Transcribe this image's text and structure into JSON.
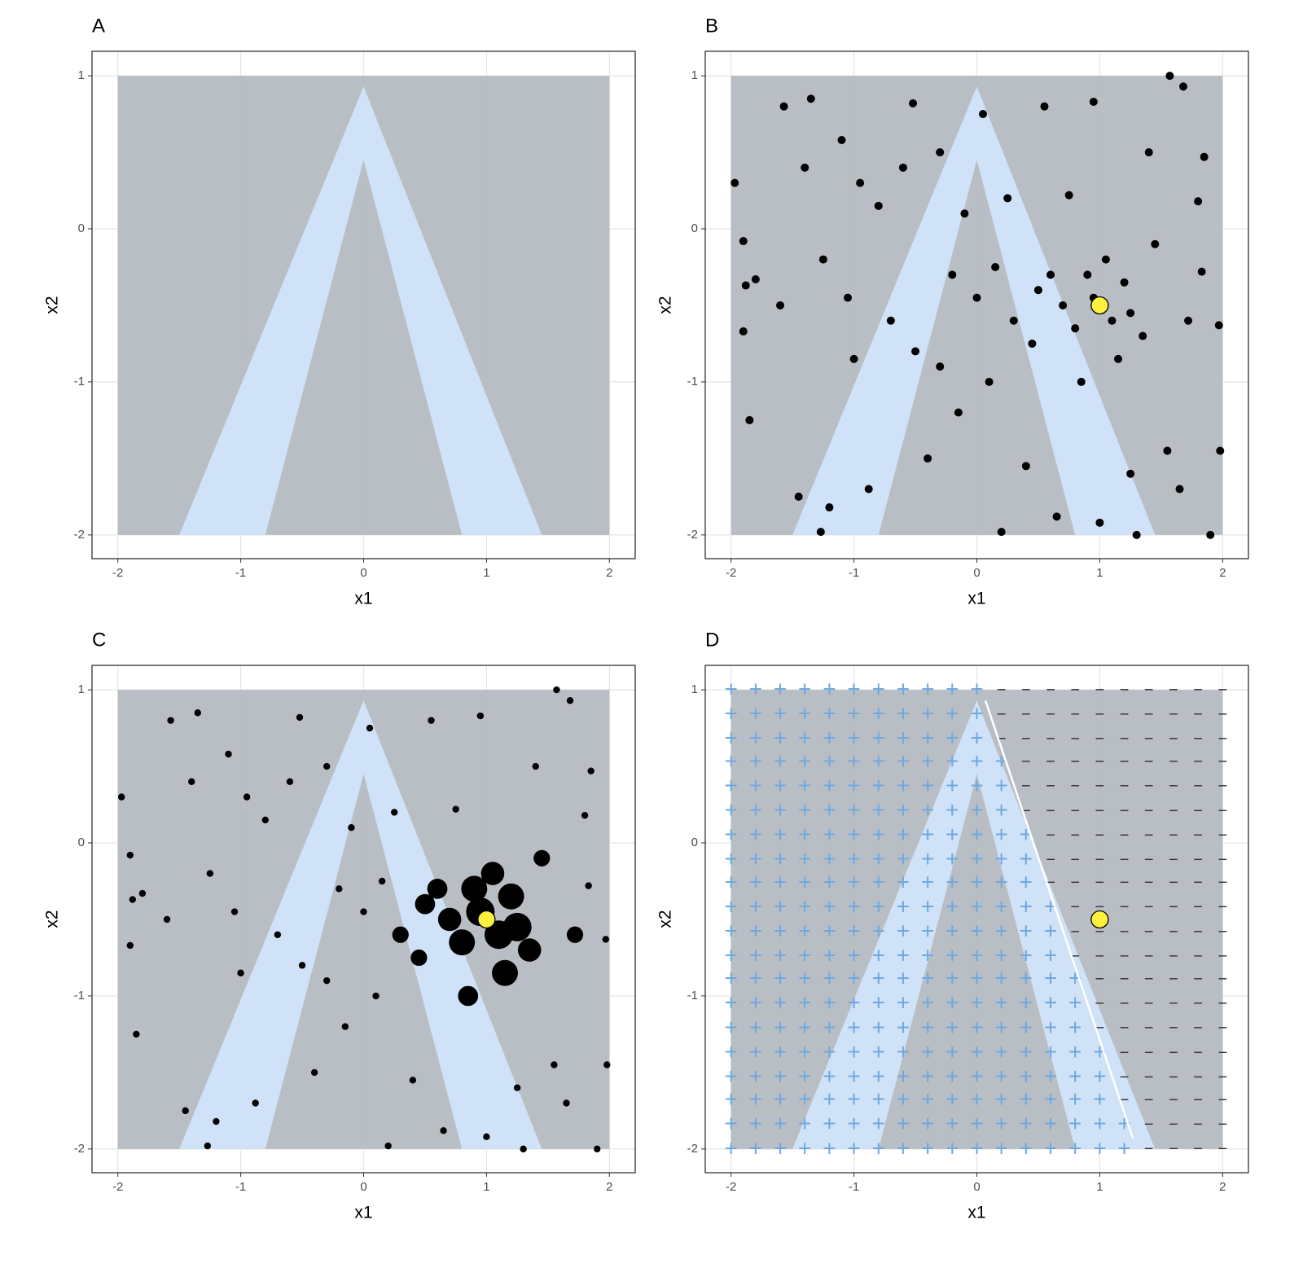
{
  "chart_data": [
    {
      "type": "region",
      "title": "A",
      "xlabel": "x1",
      "ylabel": "x2",
      "xlim": [
        -2.21,
        2.21
      ],
      "ylim": [
        -2.155,
        1.16
      ],
      "xticks": [
        -2,
        -1,
        0,
        1,
        2
      ],
      "yticks": [
        -2,
        -1,
        0,
        1
      ],
      "grid": true,
      "background": {
        "x": [
          -2,
          2
        ],
        "y": [
          -2,
          1
        ],
        "color": "#b5bac1"
      },
      "band": {
        "x": [
          0,
          1.45,
          0.8,
          0,
          -0.8,
          -1.5
        ],
        "y": [
          0.93,
          -2,
          -2,
          0.45,
          -2,
          -2
        ],
        "color": "#cfe2f7"
      }
    },
    {
      "type": "scatter",
      "title": "B",
      "xlabel": "x1",
      "ylabel": "x2",
      "xlim": [
        -2.21,
        2.21
      ],
      "ylim": [
        -2.155,
        1.16
      ],
      "xticks": [
        -2,
        -1,
        0,
        1,
        2
      ],
      "yticks": [
        -2,
        -1,
        0,
        1
      ],
      "grid": true,
      "background": {
        "x": [
          -2,
          2
        ],
        "y": [
          -2,
          1
        ],
        "color": "#b5bac1"
      },
      "band": {
        "x": [
          0,
          1.45,
          0.8,
          0,
          -0.8,
          -1.5
        ],
        "y": [
          0.93,
          -2,
          -2,
          0.45,
          -2,
          -2
        ],
        "color": "#cfe2f7"
      },
      "points": {
        "color": "#000000",
        "x": [
          -1.97,
          -1.9,
          -1.88,
          -1.8,
          -1.9,
          -1.85,
          -1.6,
          -1.57,
          -1.45,
          -1.35,
          -1.4,
          -1.25,
          -1.2,
          -1.27,
          -1.1,
          -1.05,
          -1.0,
          -0.95,
          -0.88,
          -0.8,
          -0.7,
          -0.6,
          -0.52,
          -0.5,
          -0.4,
          -0.3,
          -0.2,
          -0.15,
          -0.1,
          0.0,
          0.05,
          0.1,
          0.2,
          0.25,
          0.3,
          0.4,
          0.45,
          0.55,
          0.6,
          0.65,
          0.7,
          0.75,
          0.8,
          0.85,
          0.9,
          0.95,
          1.0,
          1.05,
          1.1,
          1.15,
          1.2,
          1.25,
          1.3,
          1.35,
          1.4,
          1.45,
          1.55,
          1.57,
          1.65,
          1.68,
          1.72,
          1.8,
          1.83,
          1.85,
          1.9,
          1.97,
          1.98,
          0.5,
          0.95,
          1.25,
          -0.3,
          0.15
        ],
        "y": [
          0.3,
          -0.08,
          -0.37,
          -0.33,
          -0.67,
          -1.25,
          -0.5,
          0.8,
          -1.75,
          0.85,
          0.4,
          -0.2,
          -1.82,
          -1.98,
          0.58,
          -0.45,
          -0.85,
          0.3,
          -1.7,
          0.15,
          -0.6,
          0.4,
          0.82,
          -0.8,
          -1.5,
          0.5,
          -0.3,
          -1.2,
          0.1,
          -0.45,
          0.75,
          -1.0,
          -1.98,
          0.2,
          -0.6,
          -1.55,
          -0.75,
          0.8,
          -0.3,
          -1.88,
          -0.5,
          0.22,
          -0.65,
          -1.0,
          -0.3,
          0.83,
          -1.92,
          -0.2,
          -0.6,
          -0.85,
          -0.35,
          -1.6,
          -2.0,
          -0.7,
          0.5,
          -0.1,
          -1.45,
          1.0,
          -1.7,
          0.93,
          -0.6,
          0.18,
          -0.28,
          0.47,
          -2.0,
          -0.63,
          -1.45,
          -0.4,
          -0.45,
          -0.55,
          -0.9,
          -0.25
        ]
      },
      "highlight": {
        "x": 1,
        "y": -0.5,
        "color": "#fff13d"
      }
    },
    {
      "type": "bubble",
      "title": "C",
      "xlabel": "x1",
      "ylabel": "x2",
      "xlim": [
        -2.21,
        2.21
      ],
      "ylim": [
        -2.155,
        1.16
      ],
      "xticks": [
        -2,
        -1,
        0,
        1,
        2
      ],
      "yticks": [
        -2,
        -1,
        0,
        1
      ],
      "grid": true,
      "background": {
        "x": [
          -2,
          2
        ],
        "y": [
          -2,
          1
        ],
        "color": "#b5bac1"
      },
      "band": {
        "x": [
          0,
          1.45,
          0.8,
          0,
          -0.8,
          -1.5
        ],
        "y": [
          0.93,
          -2,
          -2,
          0.45,
          -2,
          -2
        ],
        "color": "#cfe2f7"
      },
      "points": {
        "color": "#000000",
        "x": [
          -1.97,
          -1.9,
          -1.88,
          -1.8,
          -1.9,
          -1.85,
          -1.6,
          -1.57,
          -1.45,
          -1.35,
          -1.4,
          -1.25,
          -1.2,
          -1.27,
          -1.1,
          -1.05,
          -1.0,
          -0.95,
          -0.88,
          -0.8,
          -0.7,
          -0.6,
          -0.52,
          -0.5,
          -0.4,
          -0.3,
          -0.2,
          -0.15,
          -0.1,
          0.0,
          0.05,
          0.1,
          0.2,
          0.25,
          0.3,
          0.4,
          0.45,
          0.55,
          0.6,
          0.65,
          0.7,
          0.75,
          0.8,
          0.85,
          0.9,
          0.95,
          1.0,
          1.05,
          1.1,
          1.15,
          1.2,
          1.25,
          1.3,
          1.35,
          1.4,
          1.45,
          1.55,
          1.57,
          1.65,
          1.68,
          1.72,
          1.8,
          1.83,
          1.85,
          1.9,
          1.97,
          1.98,
          0.5,
          0.95,
          1.25,
          -0.3,
          0.15
        ],
        "y": [
          0.3,
          -0.08,
          -0.37,
          -0.33,
          -0.67,
          -1.25,
          -0.5,
          0.8,
          -1.75,
          0.85,
          0.4,
          -0.2,
          -1.82,
          -1.98,
          0.58,
          -0.45,
          -0.85,
          0.3,
          -1.7,
          0.15,
          -0.6,
          0.4,
          0.82,
          -0.8,
          -1.5,
          0.5,
          -0.3,
          -1.2,
          0.1,
          -0.45,
          0.75,
          -1.0,
          -1.98,
          0.2,
          -0.6,
          -1.55,
          -0.75,
          0.8,
          -0.3,
          -1.88,
          -0.5,
          0.22,
          -0.65,
          -1.0,
          -0.3,
          0.83,
          -1.92,
          -0.2,
          -0.6,
          -0.85,
          -0.35,
          -1.6,
          -2.0,
          -0.7,
          0.5,
          -0.1,
          -1.45,
          1.0,
          -1.7,
          0.93,
          -0.6,
          0.18,
          -0.28,
          0.47,
          -2.0,
          -0.63,
          -1.45,
          -0.4,
          -0.45,
          -0.55,
          -0.9,
          -0.25
        ],
        "sizes": [
          1,
          1,
          1,
          1,
          1,
          1,
          1,
          1,
          1,
          1,
          1,
          1,
          1,
          1,
          1,
          1,
          1,
          1,
          1,
          1,
          1,
          1,
          1,
          1,
          1,
          1,
          1,
          1,
          1,
          1,
          1,
          1,
          1,
          1,
          2,
          1,
          2,
          1,
          3,
          1,
          4,
          1,
          5,
          3,
          5,
          1,
          1,
          4,
          6,
          5,
          5,
          1,
          1,
          4,
          1,
          2,
          1,
          1,
          1,
          1,
          2,
          1,
          1,
          1,
          1,
          1,
          1,
          3,
          6,
          6,
          1,
          1
        ]
      },
      "highlight": {
        "x": 1,
        "y": -0.5,
        "color": "#fff13d"
      }
    },
    {
      "type": "grid",
      "title": "D",
      "xlabel": "x1",
      "ylabel": "x2",
      "xlim": [
        -2.21,
        2.21
      ],
      "ylim": [
        -2.155,
        1.16
      ],
      "xticks": [
        -2,
        -1,
        0,
        1,
        2
      ],
      "yticks": [
        -2,
        -1,
        0,
        1
      ],
      "grid": true,
      "background": {
        "x": [
          -2,
          2
        ],
        "y": [
          -2,
          1
        ],
        "color": "#b5bac1"
      },
      "band": {
        "x": [
          0,
          1.45,
          0.8,
          0,
          -0.8,
          -1.5
        ],
        "y": [
          0.93,
          -2,
          -2,
          0.45,
          -2,
          -2
        ],
        "color": "#cfe2f7"
      },
      "symbols": [
        "−",
        "+"
      ],
      "symbol_colors": [
        "#333333",
        "#6fa8e0"
      ],
      "grid_x": [
        -2,
        -1.8,
        -1.6,
        -1.4,
        -1.2,
        -1,
        -0.8,
        -0.6,
        -0.4,
        -0.2,
        0,
        0.2,
        0.4,
        0.6,
        0.8,
        1,
        1.2,
        1.4,
        1.6,
        1.8,
        2
      ],
      "grid_y": [
        1,
        0.84,
        0.68,
        0.53,
        0.37,
        0.21,
        0.05,
        -0.11,
        -0.26,
        -0.42,
        -0.58,
        -0.74,
        -0.89,
        -1.05,
        -1.21,
        -1.37,
        -1.53,
        -1.68,
        -1.84,
        -2
      ],
      "classes": [
        [
          1,
          1,
          1,
          1,
          1,
          1,
          1,
          1,
          1,
          1,
          1,
          0,
          0,
          0,
          0,
          0,
          0,
          0,
          0,
          0,
          0
        ],
        [
          1,
          1,
          1,
          1,
          1,
          1,
          1,
          1,
          1,
          1,
          1,
          0,
          0,
          0,
          0,
          0,
          0,
          0,
          0,
          0,
          0
        ],
        [
          1,
          1,
          1,
          1,
          1,
          1,
          1,
          1,
          1,
          1,
          1,
          0,
          0,
          0,
          0,
          0,
          0,
          0,
          0,
          0,
          0
        ],
        [
          1,
          1,
          1,
          1,
          1,
          1,
          1,
          1,
          1,
          1,
          1,
          1,
          0,
          0,
          0,
          0,
          0,
          0,
          0,
          0,
          0
        ],
        [
          1,
          1,
          1,
          1,
          1,
          1,
          1,
          1,
          1,
          1,
          1,
          1,
          0,
          0,
          0,
          0,
          0,
          0,
          0,
          0,
          0
        ],
        [
          1,
          1,
          1,
          1,
          1,
          1,
          1,
          1,
          1,
          1,
          1,
          1,
          0,
          0,
          0,
          0,
          0,
          0,
          0,
          0,
          0
        ],
        [
          1,
          1,
          1,
          1,
          1,
          1,
          1,
          1,
          1,
          1,
          1,
          1,
          1,
          0,
          0,
          0,
          0,
          0,
          0,
          0,
          0
        ],
        [
          1,
          1,
          1,
          1,
          1,
          1,
          1,
          1,
          1,
          1,
          1,
          1,
          1,
          0,
          0,
          0,
          0,
          0,
          0,
          0,
          0
        ],
        [
          1,
          1,
          1,
          1,
          1,
          1,
          1,
          1,
          1,
          1,
          1,
          1,
          1,
          0,
          0,
          0,
          0,
          0,
          0,
          0,
          0
        ],
        [
          1,
          1,
          1,
          1,
          1,
          1,
          1,
          1,
          1,
          1,
          1,
          1,
          1,
          1,
          0,
          0,
          0,
          0,
          0,
          0,
          0
        ],
        [
          1,
          1,
          1,
          1,
          1,
          1,
          1,
          1,
          1,
          1,
          1,
          1,
          1,
          1,
          0,
          0,
          0,
          0,
          0,
          0,
          0
        ],
        [
          1,
          1,
          1,
          1,
          1,
          1,
          1,
          1,
          1,
          1,
          1,
          1,
          1,
          1,
          0,
          0,
          0,
          0,
          0,
          0,
          0
        ],
        [
          1,
          1,
          1,
          1,
          1,
          1,
          1,
          1,
          1,
          1,
          1,
          1,
          1,
          1,
          1,
          0,
          0,
          0,
          0,
          0,
          0
        ],
        [
          1,
          1,
          1,
          1,
          1,
          1,
          1,
          1,
          1,
          1,
          1,
          1,
          1,
          1,
          1,
          0,
          0,
          0,
          0,
          0,
          0
        ],
        [
          1,
          1,
          1,
          1,
          1,
          1,
          1,
          1,
          1,
          1,
          1,
          1,
          1,
          1,
          1,
          0,
          0,
          0,
          0,
          0,
          0
        ],
        [
          1,
          1,
          1,
          1,
          1,
          1,
          1,
          1,
          1,
          1,
          1,
          1,
          1,
          1,
          1,
          1,
          0,
          0,
          0,
          0,
          0
        ],
        [
          1,
          1,
          1,
          1,
          1,
          1,
          1,
          1,
          1,
          1,
          1,
          1,
          1,
          1,
          1,
          1,
          0,
          0,
          0,
          0,
          0
        ],
        [
          1,
          1,
          1,
          1,
          1,
          1,
          1,
          1,
          1,
          1,
          1,
          1,
          1,
          1,
          1,
          1,
          0,
          0,
          0,
          0,
          0
        ],
        [
          1,
          1,
          1,
          1,
          1,
          1,
          1,
          1,
          1,
          1,
          1,
          1,
          1,
          1,
          1,
          1,
          1,
          0,
          0,
          0,
          0
        ],
        [
          1,
          1,
          1,
          1,
          1,
          1,
          1,
          1,
          1,
          1,
          1,
          1,
          1,
          1,
          1,
          1,
          1,
          0,
          0,
          0,
          0
        ]
      ],
      "line": {
        "x": [
          0.07,
          1.27
        ],
        "y": [
          0.93,
          -1.93
        ],
        "color": "#ffffff"
      },
      "highlight": {
        "x": 1,
        "y": -0.5,
        "color": "#fff13d"
      }
    }
  ]
}
